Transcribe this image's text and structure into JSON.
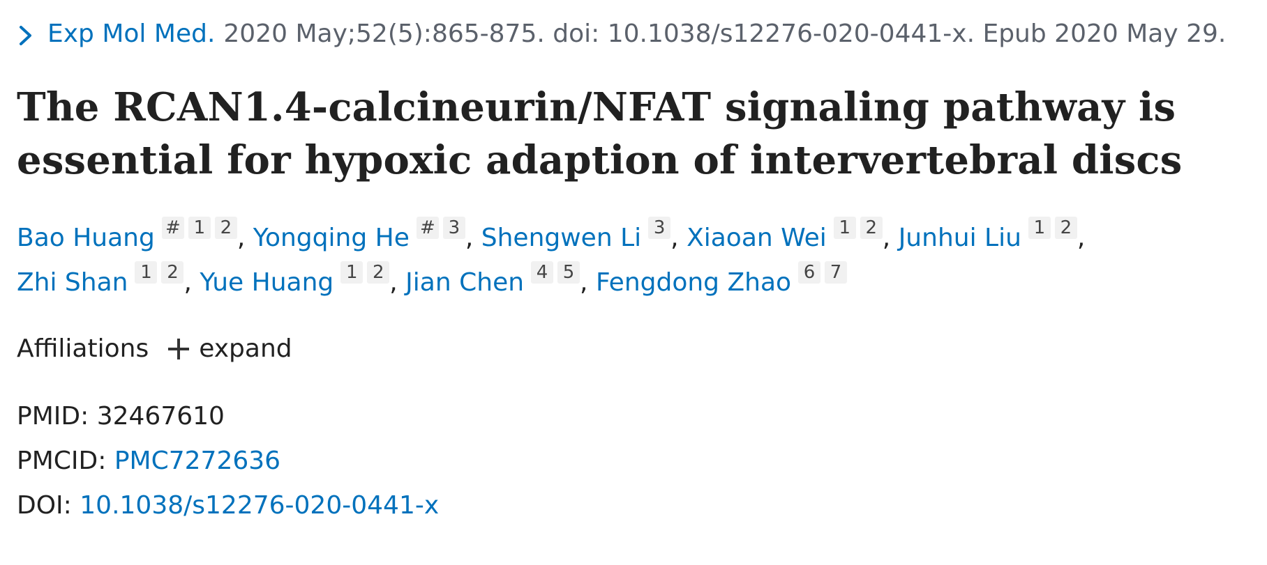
{
  "citation": {
    "journal": "Exp Mol Med.",
    "details": "2020 May;52(5):865-875. doi: 10.1038/s12276-020-0441-x. Epub 2020 May 29."
  },
  "title": "The RCAN1.4-calcineurin/NFAT signaling pathway is essential for hypoxic adaption of intervertebral discs",
  "authors": [
    {
      "name": "Bao Huang",
      "sups": [
        "#",
        "1",
        "2"
      ],
      "sep": ","
    },
    {
      "name": "Yongqing He",
      "sups": [
        "#",
        "3"
      ],
      "sep": ","
    },
    {
      "name": "Shengwen Li",
      "sups": [
        "3"
      ],
      "sep": ","
    },
    {
      "name": "Xiaoan Wei",
      "sups": [
        "1",
        "2"
      ],
      "sep": ","
    },
    {
      "name": "Junhui Liu",
      "sups": [
        "1",
        "2"
      ],
      "sep": ","
    },
    {
      "name": "Zhi Shan",
      "sups": [
        "1",
        "2"
      ],
      "sep": ","
    },
    {
      "name": "Yue Huang",
      "sups": [
        "1",
        "2"
      ],
      "sep": ","
    },
    {
      "name": "Jian Chen",
      "sups": [
        "4",
        "5"
      ],
      "sep": ","
    },
    {
      "name": "Fengdong Zhao",
      "sups": [
        "6",
        "7"
      ],
      "sep": ""
    }
  ],
  "affiliations": {
    "label": "Affiliations",
    "expand_label": "expand"
  },
  "identifiers": {
    "pmid_label": "PMID:",
    "pmid": "32467610",
    "pmcid_label": "PMCID:",
    "pmcid": "PMC7272636",
    "doi_label": "DOI:",
    "doi": "10.1038/s12276-020-0441-x"
  },
  "colors": {
    "link": "#0071bc",
    "text": "#212121",
    "muted": "#5b616b",
    "sup_bg": "#f1f1f1"
  },
  "icons": {
    "citation_toggle": "chevron-right-icon",
    "expand": "plus-icon"
  }
}
